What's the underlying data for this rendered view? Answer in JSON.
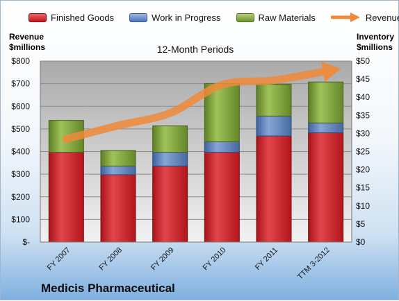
{
  "chart_data": {
    "type": "bar",
    "title": "12-Month Periods",
    "company": "Medicis Pharmaceutical",
    "categories": [
      "FY 2007",
      "FY 2008",
      "FY 2009",
      "FY 2010",
      "FY 2011",
      "TTM 3-2012"
    ],
    "left_axis": {
      "title_line1": "Revenue",
      "title_line2": "$millions",
      "ylim": [
        0,
        800
      ],
      "ticks": [
        "$-",
        "$100",
        "$200",
        "$300",
        "$400",
        "$500",
        "$600",
        "$700",
        "$800"
      ]
    },
    "right_axis": {
      "title_line1": "Inventory",
      "title_line2": "$millions",
      "ylim": [
        0,
        50
      ],
      "ticks": [
        "$0",
        "$5",
        "$10",
        "$15",
        "$20",
        "$25",
        "$30",
        "$35",
        "$40",
        "$45",
        "$50"
      ]
    },
    "stacked": true,
    "series": [
      {
        "name": "Finished Goods",
        "axis": "right",
        "color": "#d02028",
        "values": [
          24.8,
          18.6,
          21.0,
          24.8,
          29.3,
          30.2
        ]
      },
      {
        "name": "Work in Progress",
        "axis": "right",
        "color": "#5b84c4",
        "values": [
          0,
          2.4,
          3.8,
          2.9,
          5.5,
          2.7
        ]
      },
      {
        "name": "Raw Materials",
        "axis": "right",
        "color": "#7fa23a",
        "values": [
          8.8,
          4.3,
          7.3,
          16.1,
          8.8,
          11.3
        ]
      },
      {
        "name": "Revenue",
        "axis": "left",
        "type": "line",
        "color": "#f08a3a",
        "values": [
          455,
          515,
          570,
          695,
          715,
          755
        ]
      }
    ],
    "grid": true,
    "legend_position": "top"
  }
}
